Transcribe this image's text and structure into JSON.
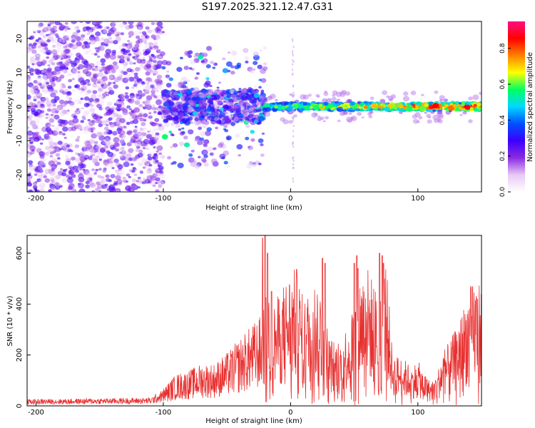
{
  "title": "S197.2025.321.12.47.G31",
  "chart_data": [
    {
      "type": "heatmap",
      "xlabel": "Height of straight line (km)",
      "ylabel": "Frequency (Hz)",
      "xlim": [
        -207,
        150
      ],
      "ylim": [
        -25,
        25
      ],
      "xticks": [
        -200,
        -100,
        0,
        100
      ],
      "yticks": [
        -20,
        -10,
        0,
        10,
        20
      ],
      "colorbar": {
        "label": "Normalized spectral amplitude",
        "range": [
          0,
          0.95
        ],
        "ticks": [
          0.0,
          0.2,
          0.4,
          0.6,
          0.8
        ],
        "tick_labels": [
          "0.0",
          "0.2",
          "0.4",
          "0.6",
          "0.8"
        ],
        "colors": [
          "#ffffff",
          "#e9c8f5",
          "#8a2be2",
          "#3b00ff",
          "#0050ff",
          "#00d8ff",
          "#00ff60",
          "#ffff00",
          "#ff8000",
          "#ff0000",
          "#ff1080"
        ]
      },
      "description_series": [
        {
          "region": "noise",
          "x": [
            -207,
            -100
          ],
          "y_spread": 25,
          "amplitude": 0.25
        },
        {
          "region": "transition",
          "x": [
            -100,
            -20
          ],
          "y_spread": 8,
          "amplitude": 0.4
        },
        {
          "region": "signal",
          "x": [
            -20,
            150
          ],
          "y_center": 0,
          "y_spread": 1.5,
          "amplitude": 0.9
        }
      ]
    },
    {
      "type": "line",
      "xlabel": "Height of straight line (km)",
      "ylabel": "SNR (10 * v/v)",
      "xlim": [
        -207,
        150
      ],
      "ylim": [
        0,
        670
      ],
      "xticks": [
        -200,
        -100,
        0,
        100
      ],
      "yticks": [
        0,
        200,
        400,
        600
      ],
      "color": "#e83030",
      "envelope": {
        "x": [
          -207,
          -110,
          -100,
          -90,
          -80,
          -70,
          -60,
          -50,
          -40,
          -30,
          -22,
          -20,
          -15,
          -10,
          -5,
          0,
          5,
          10,
          15,
          20,
          25,
          30,
          35,
          40,
          45,
          50,
          55,
          60,
          65,
          70,
          75,
          80,
          85,
          90,
          95,
          100,
          105,
          110,
          115,
          120,
          125,
          130,
          135,
          140,
          145,
          150
        ],
        "y": [
          20,
          25,
          50,
          90,
          100,
          120,
          120,
          150,
          190,
          230,
          260,
          330,
          280,
          310,
          350,
          380,
          390,
          300,
          330,
          360,
          330,
          200,
          180,
          190,
          240,
          300,
          380,
          400,
          350,
          300,
          420,
          150,
          140,
          130,
          110,
          130,
          90,
          70,
          90,
          160,
          180,
          220,
          270,
          330,
          360,
          350
        ]
      },
      "spikes": {
        "x": [
          -22,
          -20,
          -18,
          -15,
          25,
          27,
          50,
          52,
          53,
          70,
          72,
          73
        ],
        "y": [
          660,
          670,
          600,
          450,
          580,
          560,
          560,
          590,
          540,
          600,
          590,
          560
        ]
      }
    }
  ]
}
